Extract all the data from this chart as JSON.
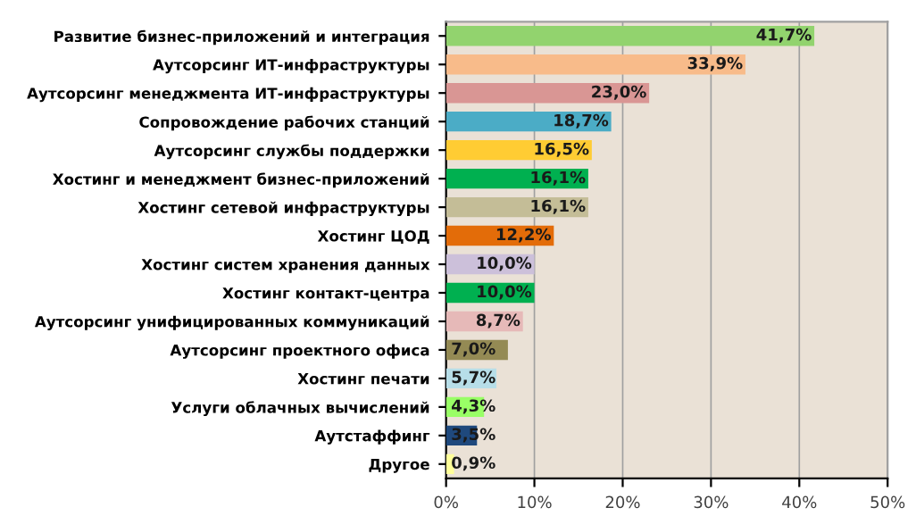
{
  "chart_data": {
    "type": "bar",
    "orientation": "horizontal",
    "categories": [
      "Развитие бизнес-приложений и интеграция",
      "Аутсорсинг ИТ-инфраструктуры",
      "Аутсорсинг менеджмента ИТ-инфраструктуры",
      "Сопровождение рабочих станций",
      "Аутсорсинг службы поддержки",
      "Хостинг и менеджмент бизнес-приложений",
      "Хостинг сетевой инфраструктуры",
      "Хостинг ЦОД",
      "Хостинг систем хранения данных",
      "Хостинг контакт-центра",
      "Аутсорсинг унифицированных коммуникаций",
      "Аутсорсинг проектного офиса",
      "Хостинг печати",
      "Услуги облачных вычислений",
      "Аутстаффинг",
      "Другое"
    ],
    "values": [
      41.7,
      33.9,
      23.0,
      18.7,
      16.5,
      16.1,
      16.1,
      12.2,
      10.0,
      10.0,
      8.7,
      7.0,
      5.7,
      4.3,
      3.5,
      0.9
    ],
    "colors": [
      "#92d36e",
      "#f8bb8a",
      "#d99694",
      "#4bacc6",
      "#ffcc33",
      "#00b050",
      "#c4bd97",
      "#e36c09",
      "#ccc0da",
      "#00b050",
      "#e6b9b8",
      "#948a54",
      "#b7dee8",
      "#99ff66",
      "#1f497d",
      "#ffff99"
    ],
    "value_labels": [
      "41,7%",
      "33,9%",
      "23,0%",
      "18,7%",
      "16,5%",
      "16,1%",
      "16,1%",
      "12,2%",
      "10,0%",
      "10,0%",
      "8,7%",
      "7,0%",
      "5,7%",
      "4,3%",
      "3,5%",
      "0,9%"
    ],
    "xlim": [
      0,
      50
    ],
    "xticks": [
      {
        "value": 0,
        "label": "0%"
      },
      {
        "value": 10,
        "label": "10%"
      },
      {
        "value": 20,
        "label": "20%"
      },
      {
        "value": 30,
        "label": "30%"
      },
      {
        "value": 40,
        "label": "40%"
      },
      {
        "value": 50,
        "label": "50%"
      }
    ],
    "grid": "x"
  }
}
